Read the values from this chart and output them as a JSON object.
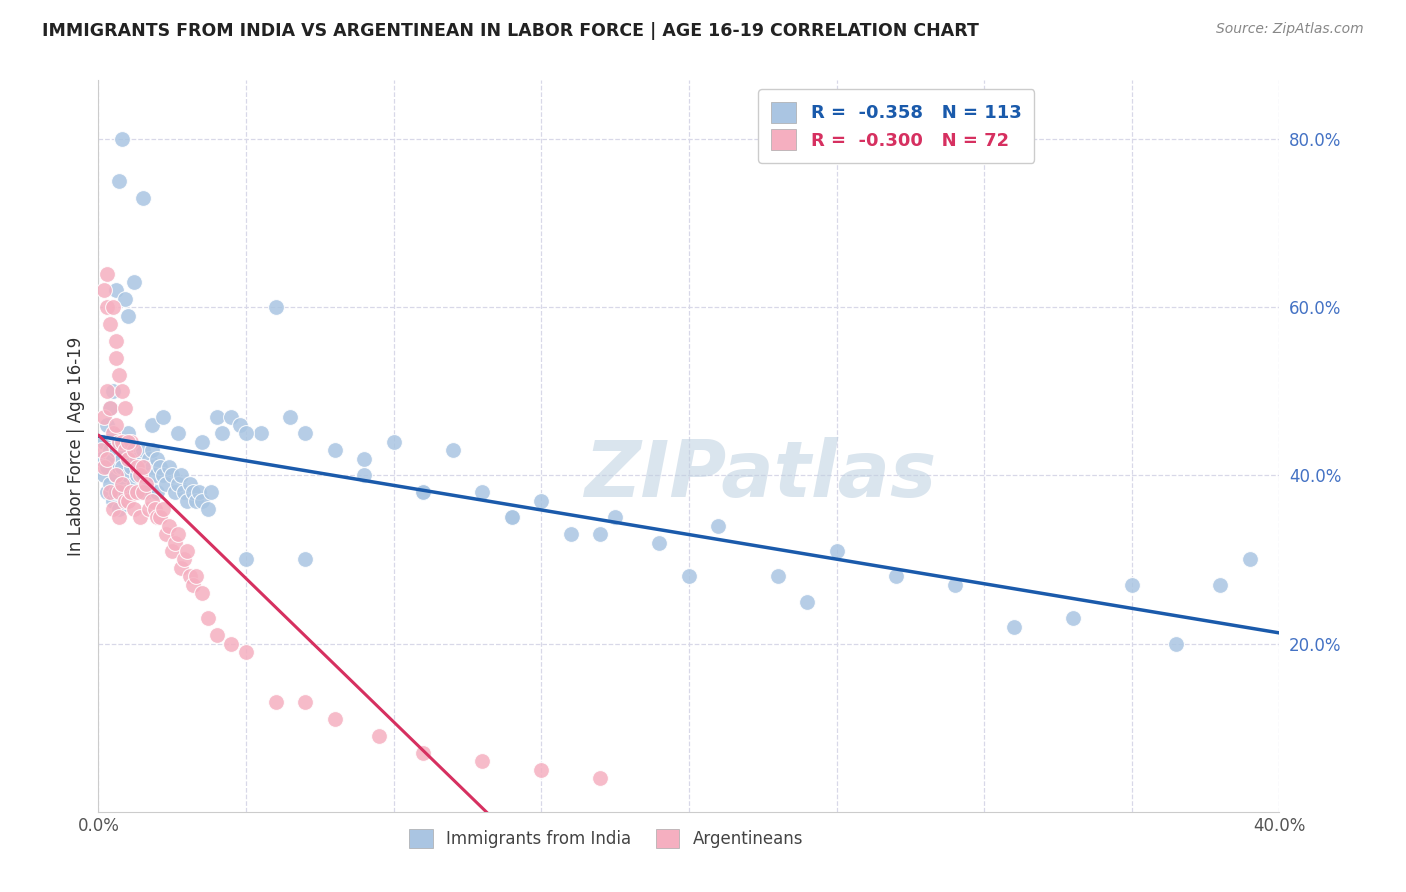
{
  "title": "IMMIGRANTS FROM INDIA VS ARGENTINEAN IN LABOR FORCE | AGE 16-19 CORRELATION CHART",
  "source": "Source: ZipAtlas.com",
  "ylabel": "In Labor Force | Age 16-19",
  "ylabel_right_ticks": [
    "80.0%",
    "60.0%",
    "40.0%",
    "20.0%"
  ],
  "ylabel_right_vals": [
    0.8,
    0.6,
    0.4,
    0.2
  ],
  "xmin": 0.0,
  "xmax": 0.4,
  "ymin": 0.0,
  "ymax": 0.87,
  "watermark": "ZIPatlas",
  "legend_india_R": "-0.358",
  "legend_india_N": "113",
  "legend_arg_R": "-0.300",
  "legend_arg_N": "72",
  "color_india": "#aac5e2",
  "color_argentina": "#f5afc0",
  "trendline_india_color": "#1a5aab",
  "trendline_arg_solid_color": "#d63060",
  "trendline_arg_dash_color": "#e8a0b8",
  "grid_color": "#d8d8e8",
  "background_color": "#ffffff",
  "india_scatter_x": [
    0.001,
    0.002,
    0.002,
    0.003,
    0.003,
    0.004,
    0.004,
    0.005,
    0.005,
    0.005,
    0.006,
    0.006,
    0.006,
    0.007,
    0.007,
    0.007,
    0.008,
    0.008,
    0.008,
    0.009,
    0.009,
    0.01,
    0.01,
    0.01,
    0.011,
    0.011,
    0.012,
    0.012,
    0.013,
    0.013,
    0.014,
    0.014,
    0.015,
    0.015,
    0.016,
    0.016,
    0.017,
    0.017,
    0.018,
    0.018,
    0.019,
    0.02,
    0.02,
    0.021,
    0.022,
    0.023,
    0.024,
    0.025,
    0.026,
    0.027,
    0.028,
    0.029,
    0.03,
    0.031,
    0.032,
    0.033,
    0.034,
    0.035,
    0.037,
    0.038,
    0.04,
    0.042,
    0.045,
    0.048,
    0.05,
    0.055,
    0.06,
    0.065,
    0.07,
    0.08,
    0.09,
    0.1,
    0.11,
    0.12,
    0.13,
    0.14,
    0.15,
    0.16,
    0.175,
    0.19,
    0.21,
    0.23,
    0.25,
    0.27,
    0.29,
    0.31,
    0.33,
    0.35,
    0.365,
    0.38,
    0.39,
    0.003,
    0.004,
    0.005,
    0.006,
    0.007,
    0.008,
    0.009,
    0.01,
    0.012,
    0.015,
    0.018,
    0.022,
    0.027,
    0.035,
    0.05,
    0.07,
    0.09,
    0.11,
    0.14,
    0.17,
    0.2,
    0.24
  ],
  "india_scatter_y": [
    0.42,
    0.44,
    0.4,
    0.41,
    0.38,
    0.43,
    0.39,
    0.42,
    0.45,
    0.37,
    0.43,
    0.4,
    0.38,
    0.41,
    0.44,
    0.36,
    0.42,
    0.39,
    0.41,
    0.43,
    0.38,
    0.42,
    0.4,
    0.45,
    0.41,
    0.38,
    0.43,
    0.39,
    0.42,
    0.4,
    0.41,
    0.38,
    0.43,
    0.4,
    0.41,
    0.38,
    0.42,
    0.39,
    0.41,
    0.43,
    0.4,
    0.42,
    0.38,
    0.41,
    0.4,
    0.39,
    0.41,
    0.4,
    0.38,
    0.39,
    0.4,
    0.38,
    0.37,
    0.39,
    0.38,
    0.37,
    0.38,
    0.37,
    0.36,
    0.38,
    0.47,
    0.45,
    0.47,
    0.46,
    0.3,
    0.45,
    0.6,
    0.47,
    0.3,
    0.43,
    0.4,
    0.44,
    0.38,
    0.43,
    0.38,
    0.35,
    0.37,
    0.33,
    0.35,
    0.32,
    0.34,
    0.28,
    0.31,
    0.28,
    0.27,
    0.22,
    0.23,
    0.27,
    0.2,
    0.27,
    0.3,
    0.46,
    0.48,
    0.5,
    0.62,
    0.75,
    0.8,
    0.61,
    0.59,
    0.63,
    0.73,
    0.46,
    0.47,
    0.45,
    0.44,
    0.45,
    0.45,
    0.42,
    0.38,
    0.35,
    0.33,
    0.28,
    0.25
  ],
  "arg_scatter_x": [
    0.001,
    0.002,
    0.002,
    0.003,
    0.003,
    0.004,
    0.004,
    0.005,
    0.005,
    0.006,
    0.006,
    0.007,
    0.007,
    0.007,
    0.008,
    0.008,
    0.009,
    0.009,
    0.01,
    0.01,
    0.011,
    0.011,
    0.012,
    0.012,
    0.013,
    0.013,
    0.014,
    0.014,
    0.015,
    0.015,
    0.016,
    0.017,
    0.018,
    0.019,
    0.02,
    0.021,
    0.022,
    0.023,
    0.024,
    0.025,
    0.026,
    0.027,
    0.028,
    0.029,
    0.03,
    0.031,
    0.032,
    0.033,
    0.035,
    0.037,
    0.04,
    0.045,
    0.05,
    0.06,
    0.07,
    0.08,
    0.095,
    0.11,
    0.13,
    0.15,
    0.17,
    0.002,
    0.003,
    0.003,
    0.004,
    0.005,
    0.006,
    0.006,
    0.007,
    0.008,
    0.009,
    0.01
  ],
  "arg_scatter_y": [
    0.43,
    0.47,
    0.41,
    0.5,
    0.42,
    0.48,
    0.38,
    0.45,
    0.36,
    0.46,
    0.4,
    0.44,
    0.38,
    0.35,
    0.44,
    0.39,
    0.43,
    0.37,
    0.42,
    0.37,
    0.44,
    0.38,
    0.43,
    0.36,
    0.41,
    0.38,
    0.4,
    0.35,
    0.41,
    0.38,
    0.39,
    0.36,
    0.37,
    0.36,
    0.35,
    0.35,
    0.36,
    0.33,
    0.34,
    0.31,
    0.32,
    0.33,
    0.29,
    0.3,
    0.31,
    0.28,
    0.27,
    0.28,
    0.26,
    0.23,
    0.21,
    0.2,
    0.19,
    0.13,
    0.13,
    0.11,
    0.09,
    0.07,
    0.06,
    0.05,
    0.04,
    0.62,
    0.64,
    0.6,
    0.58,
    0.6,
    0.56,
    0.54,
    0.52,
    0.5,
    0.48,
    0.44
  ],
  "xtick_vals": [
    0.0,
    0.05,
    0.1,
    0.15,
    0.2,
    0.25,
    0.3,
    0.35,
    0.4
  ]
}
